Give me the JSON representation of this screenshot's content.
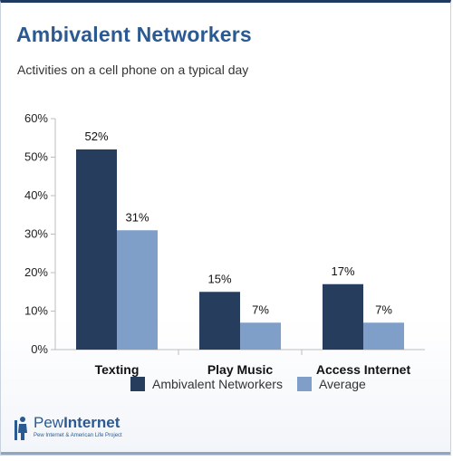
{
  "colors": {
    "title": "#2b5a92",
    "series_primary": "#263d5e",
    "series_secondary": "#7f9fc8",
    "grid": "#cfcfcf",
    "frame_top": "#1f3a5f"
  },
  "chart_data": {
    "type": "bar",
    "title": "Ambivalent Networkers",
    "subtitle": "Activities on a cell phone on a typical day",
    "categories": [
      "Texting",
      "Play Music",
      "Access Internet"
    ],
    "series": [
      {
        "name": "Ambivalent Networkers",
        "values": [
          52,
          15,
          17
        ],
        "labels": [
          "52%",
          "15%",
          "17%"
        ]
      },
      {
        "name": "Average",
        "values": [
          31,
          7,
          7
        ],
        "labels": [
          "31%",
          "7%",
          "7%"
        ]
      }
    ],
    "yticks": [
      "0%",
      "10%",
      "20%",
      "30%",
      "40%",
      "50%",
      "60%"
    ],
    "ylim": [
      0,
      60
    ],
    "grid": false,
    "legend_position": "bottom"
  },
  "logo": {
    "name_light": "Pew",
    "name_bold": "Internet",
    "tagline": "Pew Internet & American Life Project",
    "icon": "pew-figure-icon"
  }
}
